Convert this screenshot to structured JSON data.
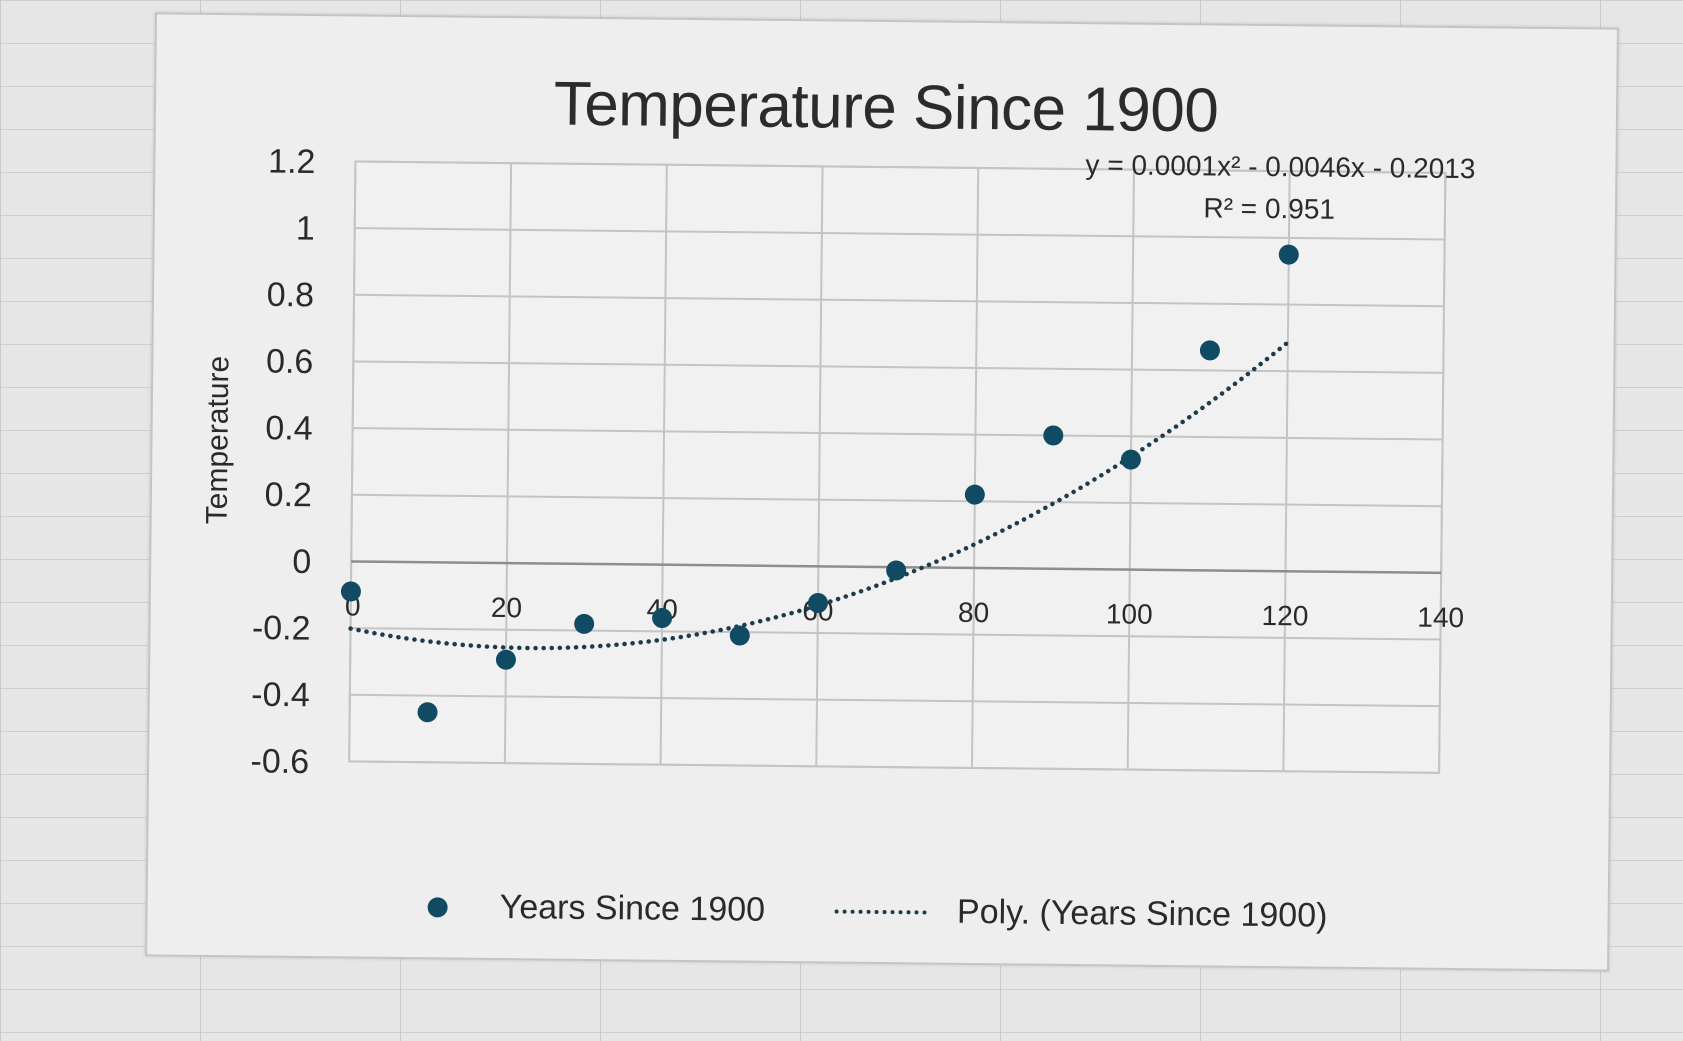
{
  "colors": {
    "marker": "#114a63",
    "trendline": "#1d3b4a",
    "grid": "#c4c4c4",
    "plot_bg": "#f1f1f1"
  },
  "chart_data": {
    "type": "scatter",
    "title": "Temperature Since 1900",
    "xlabel": "",
    "ylabel": "Temperature",
    "xlim": [
      0,
      140
    ],
    "ylim": [
      -0.6,
      1.2
    ],
    "x_ticks": [
      "0",
      "20",
      "40",
      "60",
      "80",
      "100",
      "120",
      "140"
    ],
    "y_ticks": [
      "1.2",
      "1",
      "0.8",
      "0.6",
      "0.4",
      "0.2",
      "0",
      "-0.2",
      "-0.4",
      "-0.6"
    ],
    "grid": true,
    "series": [
      {
        "name": "Years Since 1900",
        "x": [
          0,
          10,
          20,
          30,
          40,
          50,
          60,
          70,
          80,
          90,
          100,
          110,
          120
        ],
        "y": [
          -0.09,
          -0.45,
          -0.29,
          -0.18,
          -0.16,
          -0.21,
          -0.11,
          -0.01,
          0.22,
          0.4,
          0.33,
          0.66,
          0.95
        ]
      }
    ],
    "trendline": {
      "name": "Poly. (Years Since 1900)",
      "type": "polynomial",
      "coefficients": {
        "a": 0.0001,
        "b": -0.0046,
        "c": -0.2013
      },
      "x_range": [
        0,
        120
      ],
      "equation": "y = 0.0001x² - 0.0046x - 0.2013",
      "r_squared": "R² = 0.951"
    },
    "legend": [
      {
        "label": "Years Since 1900",
        "marker": "dot"
      },
      {
        "label": "Poly. (Years Since 1900)",
        "marker": "dotted-line"
      }
    ],
    "legend_position": "bottom"
  }
}
